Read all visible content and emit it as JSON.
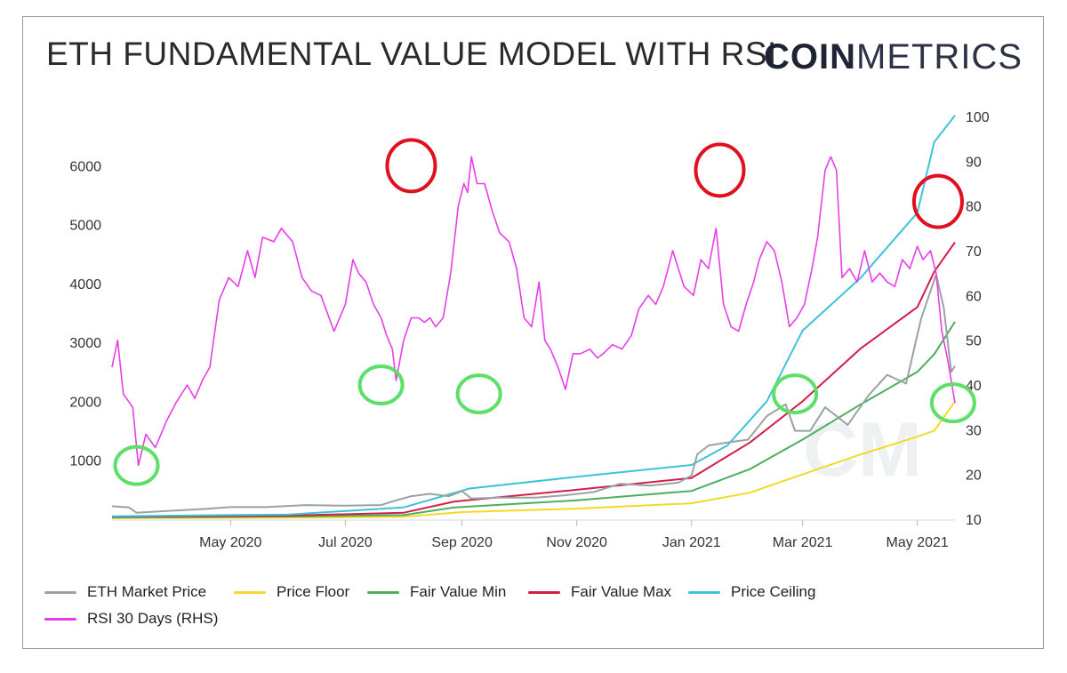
{
  "header": {
    "title": "ETH FUNDAMENTAL VALUE MODEL WITH RSI",
    "logo_bold": "COIN",
    "logo_light": "METRICS"
  },
  "watermark": "CM",
  "colors": {
    "eth_price": "#9aa3a3",
    "price_floor": "#f2d92a",
    "fair_min": "#4caf5e",
    "fair_max": "#d21f4a",
    "price_ceiling": "#3cc4d6",
    "rsi": "#e83ee8",
    "top_marker": "#e0101e",
    "bottom_marker": "#5ddf6a"
  },
  "chart_data": {
    "type": "line",
    "title": "ETH FUNDAMENTAL VALUE MODEL WITH RSI",
    "x_ticks": [
      "May 2020",
      "Jul 2020",
      "Sep 2020",
      "Nov 2020",
      "Jan 2021",
      "Mar 2021",
      "May 2021"
    ],
    "x_tick_dates": [
      "2020-05-01",
      "2020-07-01",
      "2020-09-01",
      "2020-11-01",
      "2021-01-01",
      "2021-03-01",
      "2021-05-01"
    ],
    "x_range": [
      "2020-02-28",
      "2021-05-21"
    ],
    "y_left": {
      "ticks": [
        1000,
        2000,
        3000,
        4000,
        5000,
        6000
      ],
      "range": [
        0,
        7000
      ]
    },
    "y_right": {
      "ticks": [
        10,
        20,
        30,
        40,
        50,
        60,
        70,
        80,
        90,
        100
      ],
      "range": [
        10,
        100
      ]
    },
    "grid": false,
    "legend_position": "bottom",
    "series": [
      {
        "name": "ETH Market Price",
        "axis": "left",
        "key": "eth_price",
        "points": [
          [
            "2020-02-28",
            220
          ],
          [
            "2020-03-08",
            200
          ],
          [
            "2020-03-12",
            110
          ],
          [
            "2020-03-25",
            135
          ],
          [
            "2020-04-15",
            170
          ],
          [
            "2020-05-01",
            205
          ],
          [
            "2020-05-20",
            205
          ],
          [
            "2020-06-10",
            240
          ],
          [
            "2020-07-01",
            230
          ],
          [
            "2020-07-20",
            240
          ],
          [
            "2020-07-28",
            320
          ],
          [
            "2020-08-05",
            390
          ],
          [
            "2020-08-15",
            430
          ],
          [
            "2020-08-25",
            390
          ],
          [
            "2020-09-01",
            475
          ],
          [
            "2020-09-06",
            350
          ],
          [
            "2020-09-20",
            365
          ],
          [
            "2020-10-10",
            365
          ],
          [
            "2020-10-25",
            405
          ],
          [
            "2020-11-10",
            460
          ],
          [
            "2020-11-24",
            600
          ],
          [
            "2020-12-10",
            570
          ],
          [
            "2020-12-25",
            620
          ],
          [
            "2021-01-01",
            740
          ],
          [
            "2021-01-04",
            1100
          ],
          [
            "2021-01-10",
            1250
          ],
          [
            "2021-01-20",
            1300
          ],
          [
            "2021-01-31",
            1350
          ],
          [
            "2021-02-10",
            1750
          ],
          [
            "2021-02-20",
            1950
          ],
          [
            "2021-02-25",
            1500
          ],
          [
            "2021-03-05",
            1500
          ],
          [
            "2021-03-13",
            1900
          ],
          [
            "2021-03-25",
            1600
          ],
          [
            "2021-04-05",
            2100
          ],
          [
            "2021-04-15",
            2450
          ],
          [
            "2021-04-25",
            2300
          ],
          [
            "2021-05-03",
            3400
          ],
          [
            "2021-05-11",
            4150
          ],
          [
            "2021-05-15",
            3600
          ],
          [
            "2021-05-19",
            2500
          ],
          [
            "2021-05-21",
            2600
          ]
        ]
      },
      {
        "name": "Price Floor",
        "axis": "left",
        "key": "price_floor",
        "points": [
          [
            "2020-02-28",
            20
          ],
          [
            "2020-06-01",
            25
          ],
          [
            "2020-08-01",
            40
          ],
          [
            "2020-09-01",
            120
          ],
          [
            "2020-11-01",
            180
          ],
          [
            "2021-01-01",
            270
          ],
          [
            "2021-02-01",
            450
          ],
          [
            "2021-03-01",
            760
          ],
          [
            "2021-04-01",
            1100
          ],
          [
            "2021-05-01",
            1400
          ],
          [
            "2021-05-10",
            1500
          ],
          [
            "2021-05-21",
            2000
          ]
        ]
      },
      {
        "name": "Fair Value Min",
        "axis": "left",
        "key": "fair_min",
        "points": [
          [
            "2020-02-28",
            30
          ],
          [
            "2020-06-01",
            45
          ],
          [
            "2020-08-01",
            70
          ],
          [
            "2020-08-28",
            200
          ],
          [
            "2020-11-01",
            320
          ],
          [
            "2021-01-01",
            480
          ],
          [
            "2021-02-01",
            850
          ],
          [
            "2021-03-01",
            1350
          ],
          [
            "2021-04-01",
            1950
          ],
          [
            "2021-05-01",
            2500
          ],
          [
            "2021-05-10",
            2800
          ],
          [
            "2021-05-21",
            3350
          ]
        ]
      },
      {
        "name": "Fair Value Max",
        "axis": "left",
        "key": "fair_max",
        "points": [
          [
            "2020-02-28",
            40
          ],
          [
            "2020-06-01",
            60
          ],
          [
            "2020-08-01",
            110
          ],
          [
            "2020-08-28",
            300
          ],
          [
            "2020-11-01",
            500
          ],
          [
            "2021-01-01",
            700
          ],
          [
            "2021-02-01",
            1300
          ],
          [
            "2021-03-01",
            2000
          ],
          [
            "2021-04-01",
            2900
          ],
          [
            "2021-05-01",
            3600
          ],
          [
            "2021-05-10",
            4200
          ],
          [
            "2021-05-21",
            4700
          ]
        ]
      },
      {
        "name": "Price Ceiling",
        "axis": "left",
        "key": "price_ceiling",
        "points": [
          [
            "2020-02-28",
            50
          ],
          [
            "2020-06-01",
            80
          ],
          [
            "2020-08-01",
            200
          ],
          [
            "2020-09-05",
            520
          ],
          [
            "2020-11-01",
            720
          ],
          [
            "2021-01-01",
            920
          ],
          [
            "2021-01-20",
            1250
          ],
          [
            "2021-02-10",
            2000
          ],
          [
            "2021-03-01",
            3200
          ],
          [
            "2021-04-01",
            4100
          ],
          [
            "2021-05-01",
            5200
          ],
          [
            "2021-05-10",
            6400
          ],
          [
            "2021-05-21",
            6850
          ]
        ]
      },
      {
        "name": "RSI 30 Days (RHS)",
        "axis": "right",
        "key": "rsi",
        "points": [
          [
            "2020-02-28",
            44
          ],
          [
            "2020-03-02",
            50
          ],
          [
            "2020-03-05",
            38
          ],
          [
            "2020-03-10",
            35
          ],
          [
            "2020-03-13",
            22
          ],
          [
            "2020-03-17",
            29
          ],
          [
            "2020-03-22",
            26
          ],
          [
            "2020-03-28",
            32
          ],
          [
            "2020-04-02",
            36
          ],
          [
            "2020-04-08",
            40
          ],
          [
            "2020-04-12",
            37
          ],
          [
            "2020-04-16",
            41
          ],
          [
            "2020-04-20",
            44
          ],
          [
            "2020-04-25",
            59
          ],
          [
            "2020-04-30",
            64
          ],
          [
            "2020-05-05",
            62
          ],
          [
            "2020-05-10",
            70
          ],
          [
            "2020-05-14",
            64
          ],
          [
            "2020-05-18",
            73
          ],
          [
            "2020-05-24",
            72
          ],
          [
            "2020-05-28",
            75
          ],
          [
            "2020-06-03",
            72
          ],
          [
            "2020-06-08",
            64
          ],
          [
            "2020-06-13",
            61
          ],
          [
            "2020-06-18",
            60
          ],
          [
            "2020-06-25",
            52
          ],
          [
            "2020-07-01",
            58
          ],
          [
            "2020-07-05",
            68
          ],
          [
            "2020-07-08",
            65
          ],
          [
            "2020-07-12",
            63
          ],
          [
            "2020-07-16",
            58
          ],
          [
            "2020-07-20",
            55
          ],
          [
            "2020-07-23",
            51
          ],
          [
            "2020-07-26",
            48
          ],
          [
            "2020-07-28",
            41
          ],
          [
            "2020-08-01",
            50
          ],
          [
            "2020-08-05",
            55
          ],
          [
            "2020-08-09",
            55
          ],
          [
            "2020-08-12",
            54
          ],
          [
            "2020-08-15",
            55
          ],
          [
            "2020-08-18",
            53
          ],
          [
            "2020-08-22",
            55
          ],
          [
            "2020-08-26",
            65
          ],
          [
            "2020-08-30",
            80
          ],
          [
            "2020-09-02",
            85
          ],
          [
            "2020-09-04",
            83
          ],
          [
            "2020-09-06",
            91
          ],
          [
            "2020-09-09",
            85
          ],
          [
            "2020-09-13",
            85
          ],
          [
            "2020-09-17",
            79
          ],
          [
            "2020-09-21",
            74
          ],
          [
            "2020-09-26",
            72
          ],
          [
            "2020-09-30",
            66
          ],
          [
            "2020-10-04",
            55
          ],
          [
            "2020-10-08",
            53
          ],
          [
            "2020-10-12",
            63
          ],
          [
            "2020-10-15",
            50
          ],
          [
            "2020-10-18",
            48
          ],
          [
            "2020-10-22",
            44
          ],
          [
            "2020-10-26",
            39
          ],
          [
            "2020-10-30",
            47
          ],
          [
            "2020-11-03",
            47
          ],
          [
            "2020-11-08",
            48
          ],
          [
            "2020-11-12",
            46
          ],
          [
            "2020-11-15",
            47
          ],
          [
            "2020-11-20",
            49
          ],
          [
            "2020-11-25",
            48
          ],
          [
            "2020-11-30",
            51
          ],
          [
            "2020-12-04",
            57
          ],
          [
            "2020-12-09",
            60
          ],
          [
            "2020-12-13",
            58
          ],
          [
            "2020-12-17",
            62
          ],
          [
            "2020-12-22",
            70
          ],
          [
            "2020-12-28",
            62
          ],
          [
            "2021-01-02",
            60
          ],
          [
            "2021-01-06",
            68
          ],
          [
            "2021-01-10",
            66
          ],
          [
            "2021-01-14",
            75
          ],
          [
            "2021-01-18",
            58
          ],
          [
            "2021-01-22",
            53
          ],
          [
            "2021-01-26",
            52
          ],
          [
            "2021-01-30",
            58
          ],
          [
            "2021-02-03",
            63
          ],
          [
            "2021-02-06",
            68
          ],
          [
            "2021-02-10",
            72
          ],
          [
            "2021-02-14",
            70
          ],
          [
            "2021-02-18",
            63
          ],
          [
            "2021-02-22",
            53
          ],
          [
            "2021-02-26",
            55
          ],
          [
            "2021-03-02",
            58
          ],
          [
            "2021-03-06",
            66
          ],
          [
            "2021-03-09",
            73
          ],
          [
            "2021-03-13",
            88
          ],
          [
            "2021-03-16",
            91
          ],
          [
            "2021-03-19",
            88
          ],
          [
            "2021-03-22",
            64
          ],
          [
            "2021-03-26",
            66
          ],
          [
            "2021-03-30",
            63
          ],
          [
            "2021-04-03",
            70
          ],
          [
            "2021-04-07",
            63
          ],
          [
            "2021-04-11",
            65
          ],
          [
            "2021-04-15",
            63
          ],
          [
            "2021-04-19",
            62
          ],
          [
            "2021-04-23",
            68
          ],
          [
            "2021-04-27",
            66
          ],
          [
            "2021-05-01",
            71
          ],
          [
            "2021-05-04",
            68
          ],
          [
            "2021-05-08",
            70
          ],
          [
            "2021-05-11",
            65
          ],
          [
            "2021-05-14",
            52
          ],
          [
            "2021-05-17",
            46
          ],
          [
            "2021-05-21",
            36
          ]
        ]
      }
    ],
    "annotations": {
      "top_circles": [
        [
          "2020-08-05",
          89
        ],
        [
          "2021-01-16",
          88
        ],
        [
          "2021-05-12",
          81
        ]
      ],
      "bottom_circles": [
        [
          "2020-03-12",
          22
        ],
        [
          "2020-07-20",
          40
        ],
        [
          "2020-09-10",
          38
        ],
        [
          "2021-02-25",
          38
        ],
        [
          "2021-05-20",
          36
        ]
      ]
    }
  },
  "legend": [
    {
      "label": "ETH Market Price",
      "key": "eth_price"
    },
    {
      "label": "Price Floor",
      "key": "price_floor"
    },
    {
      "label": "Fair Value Min",
      "key": "fair_min"
    },
    {
      "label": "Fair Value Max",
      "key": "fair_max"
    },
    {
      "label": "Price Ceiling",
      "key": "price_ceiling"
    },
    {
      "label": "RSI 30 Days (RHS)",
      "key": "rsi"
    }
  ]
}
